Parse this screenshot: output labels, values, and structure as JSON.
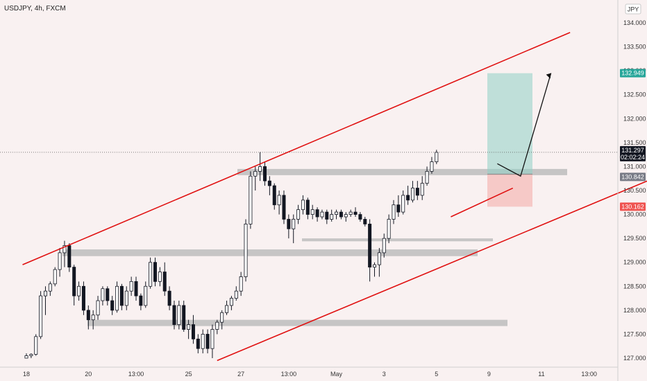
{
  "chart_data": {
    "type": "candlestick",
    "title": "USDJPY, 4h, FXCM",
    "currency": "JPY",
    "y_axis": {
      "range": [
        126.9,
        134.1
      ],
      "ticks": [
        "134.000",
        "133.500",
        "133.000",
        "132.500",
        "132.000",
        "131.500",
        "131.000",
        "130.500",
        "130.000",
        "129.500",
        "129.000",
        "128.500",
        "128.000",
        "127.500",
        "127.000"
      ]
    },
    "x_axis": {
      "ticks": [
        {
          "label": "18",
          "bar": 0
        },
        {
          "label": "20",
          "bar": 13
        },
        {
          "label": "13:00",
          "bar": 23
        },
        {
          "label": "25",
          "bar": 34
        },
        {
          "label": "27",
          "bar": 45
        },
        {
          "label": "13:00",
          "bar": 55
        },
        {
          "label": "May",
          "bar": 65
        },
        {
          "label": "3",
          "bar": 75
        },
        {
          "label": "5",
          "bar": 86
        },
        {
          "label": "9",
          "bar": 97
        },
        {
          "label": "11",
          "bar": 108
        },
        {
          "label": "13:00",
          "bar": 118
        }
      ]
    },
    "candles": [
      [
        127.0,
        127.1,
        127.0,
        127.05
      ],
      [
        127.05,
        127.1,
        127.0,
        127.08
      ],
      [
        127.08,
        127.5,
        127.05,
        127.45
      ],
      [
        127.45,
        128.4,
        127.4,
        128.3
      ],
      [
        128.3,
        128.5,
        127.9,
        128.4
      ],
      [
        128.4,
        128.6,
        128.3,
        128.55
      ],
      [
        128.55,
        128.9,
        128.5,
        128.85
      ],
      [
        128.85,
        129.3,
        128.7,
        129.2
      ],
      [
        129.2,
        129.45,
        128.9,
        129.35
      ],
      [
        129.35,
        129.4,
        128.8,
        128.9
      ],
      [
        128.9,
        128.95,
        128.1,
        128.3
      ],
      [
        128.3,
        128.6,
        128.2,
        128.5
      ],
      [
        128.5,
        128.6,
        127.9,
        128.0
      ],
      [
        128.0,
        128.1,
        127.6,
        127.8
      ],
      [
        127.8,
        128.0,
        127.6,
        127.9
      ],
      [
        127.9,
        128.3,
        127.8,
        128.2
      ],
      [
        128.2,
        128.5,
        128.1,
        128.45
      ],
      [
        128.45,
        128.5,
        128.1,
        128.2
      ],
      [
        128.2,
        128.3,
        127.9,
        128.0
      ],
      [
        128.0,
        128.6,
        127.95,
        128.5
      ],
      [
        128.5,
        128.55,
        128.0,
        128.1
      ],
      [
        128.1,
        128.5,
        128.0,
        128.4
      ],
      [
        128.4,
        128.7,
        128.3,
        128.6
      ],
      [
        128.6,
        128.7,
        128.2,
        128.3
      ],
      [
        128.3,
        128.35,
        128.0,
        128.1
      ],
      [
        128.1,
        128.6,
        128.05,
        128.5
      ],
      [
        128.5,
        129.1,
        128.45,
        129.0
      ],
      [
        129.0,
        129.1,
        128.5,
        128.6
      ],
      [
        128.6,
        128.9,
        128.5,
        128.8
      ],
      [
        128.8,
        129.0,
        128.3,
        128.4
      ],
      [
        128.4,
        128.5,
        128.0,
        128.1
      ],
      [
        128.1,
        128.2,
        127.6,
        127.7
      ],
      [
        127.7,
        128.2,
        127.6,
        128.1
      ],
      [
        128.1,
        128.2,
        127.55,
        127.6
      ],
      [
        127.6,
        127.8,
        127.4,
        127.7
      ],
      [
        127.7,
        127.9,
        127.3,
        127.4
      ],
      [
        127.4,
        127.5,
        127.1,
        127.2
      ],
      [
        127.2,
        127.6,
        127.1,
        127.5
      ],
      [
        127.5,
        127.6,
        127.1,
        127.2
      ],
      [
        127.2,
        127.7,
        127.0,
        127.6
      ],
      [
        127.6,
        127.8,
        127.5,
        127.75
      ],
      [
        127.75,
        128.0,
        127.6,
        127.95
      ],
      [
        127.95,
        128.2,
        127.9,
        128.1
      ],
      [
        128.1,
        128.3,
        128.0,
        128.25
      ],
      [
        128.25,
        128.5,
        128.2,
        128.4
      ],
      [
        128.4,
        128.8,
        128.3,
        128.7
      ],
      [
        128.7,
        129.9,
        128.6,
        129.8
      ],
      [
        129.8,
        130.9,
        129.7,
        130.8
      ],
      [
        130.8,
        131.0,
        130.5,
        130.9
      ],
      [
        130.9,
        131.3,
        130.7,
        131.0
      ],
      [
        131.0,
        131.1,
        130.6,
        130.7
      ],
      [
        130.7,
        130.8,
        130.4,
        130.6
      ],
      [
        130.6,
        130.65,
        130.1,
        130.2
      ],
      [
        130.2,
        130.5,
        130.0,
        130.4
      ],
      [
        130.4,
        130.5,
        129.8,
        129.9
      ],
      [
        129.9,
        130.0,
        129.5,
        129.7
      ],
      [
        129.7,
        130.0,
        129.4,
        129.9
      ],
      [
        129.9,
        130.2,
        129.8,
        130.1
      ],
      [
        130.1,
        130.4,
        130.0,
        130.3
      ],
      [
        130.3,
        130.35,
        129.9,
        130.0
      ],
      [
        130.0,
        130.2,
        129.9,
        130.1
      ],
      [
        130.1,
        130.15,
        129.85,
        129.95
      ],
      [
        129.95,
        130.1,
        129.9,
        130.05
      ],
      [
        130.05,
        130.1,
        129.8,
        129.9
      ],
      [
        129.9,
        130.1,
        129.85,
        130.0
      ],
      [
        130.0,
        130.1,
        129.9,
        130.05
      ],
      [
        130.05,
        130.1,
        129.9,
        129.95
      ],
      [
        129.95,
        130.05,
        129.85,
        130.0
      ],
      [
        130.0,
        130.1,
        129.95,
        130.05
      ],
      [
        130.05,
        130.15,
        129.95,
        130.0
      ],
      [
        130.0,
        130.05,
        129.85,
        129.9
      ],
      [
        129.9,
        129.95,
        129.75,
        129.8
      ],
      [
        129.8,
        129.9,
        128.6,
        128.9
      ],
      [
        128.9,
        129.0,
        128.7,
        128.95
      ],
      [
        128.95,
        129.3,
        128.7,
        129.2
      ],
      [
        129.2,
        129.6,
        129.1,
        129.5
      ],
      [
        129.5,
        130.0,
        129.4,
        129.9
      ],
      [
        129.9,
        130.3,
        129.8,
        130.2
      ],
      [
        130.2,
        130.4,
        129.95,
        130.05
      ],
      [
        130.05,
        130.5,
        130.0,
        130.4
      ],
      [
        130.4,
        130.6,
        130.2,
        130.3
      ],
      [
        130.3,
        130.7,
        130.25,
        130.55
      ],
      [
        130.55,
        130.7,
        130.3,
        130.4
      ],
      [
        130.4,
        130.8,
        130.3,
        130.65
      ],
      [
        130.65,
        131.0,
        130.6,
        130.9
      ],
      [
        130.9,
        131.2,
        130.85,
        131.1
      ],
      [
        131.1,
        131.35,
        131.05,
        131.297
      ]
    ],
    "zones": [
      {
        "top": 130.95,
        "bottom": 130.82
      },
      {
        "top": 129.27,
        "bottom": 129.13
      },
      {
        "top": 129.5,
        "bottom": 129.44
      },
      {
        "top": 127.8,
        "bottom": 127.67
      }
    ],
    "trendlines": [
      {
        "from": [
          128.95,
          -0.8
        ],
        "to": [
          133.8,
          114
        ]
      },
      {
        "from": [
          126.95,
          40
        ],
        "to": [
          130.9,
          135
        ]
      },
      {
        "from": [
          129.95,
          89
        ],
        "to": [
          130.55,
          102
        ]
      }
    ],
    "position": {
      "type": "long",
      "entry": 130.842,
      "target": 132.949,
      "stop": 130.162
    },
    "projection": [
      [
        130.8,
        101
      ],
      [
        132.95,
        106.5
      ]
    ],
    "current_price": 131.297,
    "countdown": "02:02:24",
    "price_labels": [
      {
        "value": "132.949",
        "color": "#26a69a"
      },
      {
        "value": "131.297",
        "color": "#131722"
      },
      {
        "value": "130.842",
        "color": "#787b86"
      },
      {
        "value": "130.162",
        "color": "#ef5350"
      }
    ],
    "colors": {
      "up": "#ffffff",
      "down": "#131722",
      "trend": "#e01010",
      "zone": "#bdbdbd",
      "target_zone": "#8fd0c4",
      "stop_zone": "#f4b4b0"
    }
  }
}
